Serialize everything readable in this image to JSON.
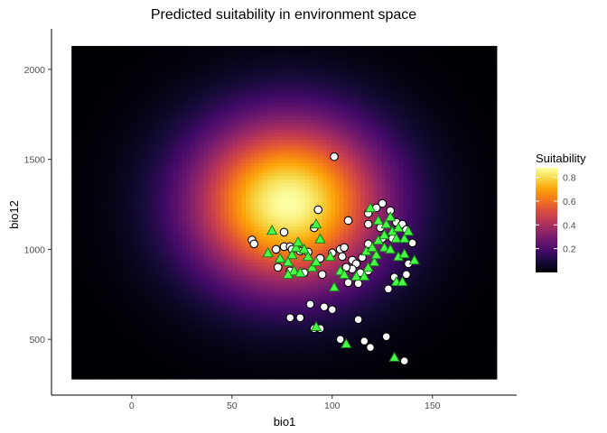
{
  "chart_data": {
    "type": "heatmap",
    "title": "Predicted suitability in environment space",
    "xlabel": "bio1",
    "ylabel": "bio12",
    "xlim": [
      -40,
      192
    ],
    "ylim": [
      190,
      2225
    ],
    "raster_extent": {
      "x": [
        -30,
        182
      ],
      "y": [
        280,
        2130
      ]
    },
    "x_ticks": [
      0,
      50,
      100,
      150
    ],
    "y_ticks": [
      500,
      1000,
      1500,
      2000
    ],
    "grid": false,
    "legend": {
      "title": "Suitability",
      "position": "right",
      "range": [
        0,
        0.88
      ],
      "ticks": [
        0.2,
        0.4,
        0.6,
        0.8
      ],
      "tick_labels": [
        "0.2",
        "0.4",
        "0.6",
        "0.8"
      ],
      "colormap": "inferno"
    },
    "surface": {
      "peak_x": 78,
      "peak_y": 1260,
      "peak_value": 0.88
    },
    "point_styles": {
      "circle": {
        "fill": "#ffffff",
        "stroke": "#000000"
      },
      "triangle": {
        "fill": "#44ff44",
        "stroke": "#1a7a1a"
      }
    },
    "series": [
      {
        "shape": "circle",
        "points": [
          [
            101,
            1515
          ],
          [
            93,
            1220
          ],
          [
            125,
            1255
          ],
          [
            122,
            1230
          ],
          [
            118,
            1200
          ],
          [
            129,
            1215
          ],
          [
            108,
            1160
          ],
          [
            118,
            1140
          ],
          [
            132,
            1150
          ],
          [
            135,
            1140
          ],
          [
            137,
            1110
          ],
          [
            124,
            1120
          ],
          [
            130,
            1060
          ],
          [
            140,
            1035
          ],
          [
            125,
            1060
          ],
          [
            118,
            1030
          ],
          [
            60,
            1052
          ],
          [
            61,
            1030
          ],
          [
            76,
            1015
          ],
          [
            79,
            1015
          ],
          [
            72,
            1000
          ],
          [
            80,
            1000
          ],
          [
            84,
            990
          ],
          [
            88,
            985
          ],
          [
            76,
            1095
          ],
          [
            91,
            1120
          ],
          [
            104,
            1000
          ],
          [
            106,
            1010
          ],
          [
            100,
            980
          ],
          [
            94,
            950
          ],
          [
            105,
            960
          ],
          [
            110,
            940
          ],
          [
            112,
            920
          ],
          [
            115,
            955
          ],
          [
            110,
            890
          ],
          [
            118,
            880
          ],
          [
            114,
            870
          ],
          [
            107,
            900
          ],
          [
            95,
            860
          ],
          [
            86,
            870
          ],
          [
            79,
            880
          ],
          [
            73,
            900
          ],
          [
            108,
            815
          ],
          [
            113,
            810
          ],
          [
            131,
            845
          ],
          [
            137,
            860
          ],
          [
            138,
            920
          ],
          [
            128,
            780
          ],
          [
            89,
            695
          ],
          [
            84,
            620
          ],
          [
            79,
            620
          ],
          [
            96,
            680
          ],
          [
            100,
            665
          ],
          [
            91,
            560
          ],
          [
            94,
            560
          ],
          [
            113,
            610
          ],
          [
            104,
            500
          ],
          [
            116,
            490
          ],
          [
            119,
            455
          ],
          [
            127,
            515
          ],
          [
            136,
            380
          ]
        ]
      },
      {
        "shape": "triangle",
        "points": [
          [
            70,
            1105
          ],
          [
            92,
            1140
          ],
          [
            94,
            1057
          ],
          [
            80,
            970
          ],
          [
            68,
            980
          ],
          [
            74,
            950
          ],
          [
            78,
            930
          ],
          [
            82,
            1010
          ],
          [
            83,
            1040
          ],
          [
            86,
            1000
          ],
          [
            88,
            960
          ],
          [
            81,
            880
          ],
          [
            78,
            860
          ],
          [
            84,
            870
          ],
          [
            90,
            900
          ],
          [
            92,
            930
          ],
          [
            99,
            960
          ],
          [
            104,
            880
          ],
          [
            106,
            860
          ],
          [
            112,
            850
          ],
          [
            116,
            850
          ],
          [
            118,
            900
          ],
          [
            121,
            930
          ],
          [
            122,
            970
          ],
          [
            117,
            990
          ],
          [
            120,
            1010
          ],
          [
            123,
            1050
          ],
          [
            126,
            1010
          ],
          [
            126,
            1080
          ],
          [
            129,
            1000
          ],
          [
            130,
            1100
          ],
          [
            132,
            1060
          ],
          [
            136,
            1060
          ],
          [
            138,
            1100
          ],
          [
            127,
            1140
          ],
          [
            129,
            1180
          ],
          [
            119,
            1230
          ],
          [
            123,
            1160
          ],
          [
            133,
            1120
          ],
          [
            132,
            820
          ],
          [
            135,
            820
          ],
          [
            141,
            940
          ],
          [
            133,
            960
          ],
          [
            136,
            975
          ],
          [
            101,
            790
          ],
          [
            92,
            570
          ],
          [
            107,
            475
          ],
          [
            131,
            400
          ]
        ]
      }
    ]
  }
}
